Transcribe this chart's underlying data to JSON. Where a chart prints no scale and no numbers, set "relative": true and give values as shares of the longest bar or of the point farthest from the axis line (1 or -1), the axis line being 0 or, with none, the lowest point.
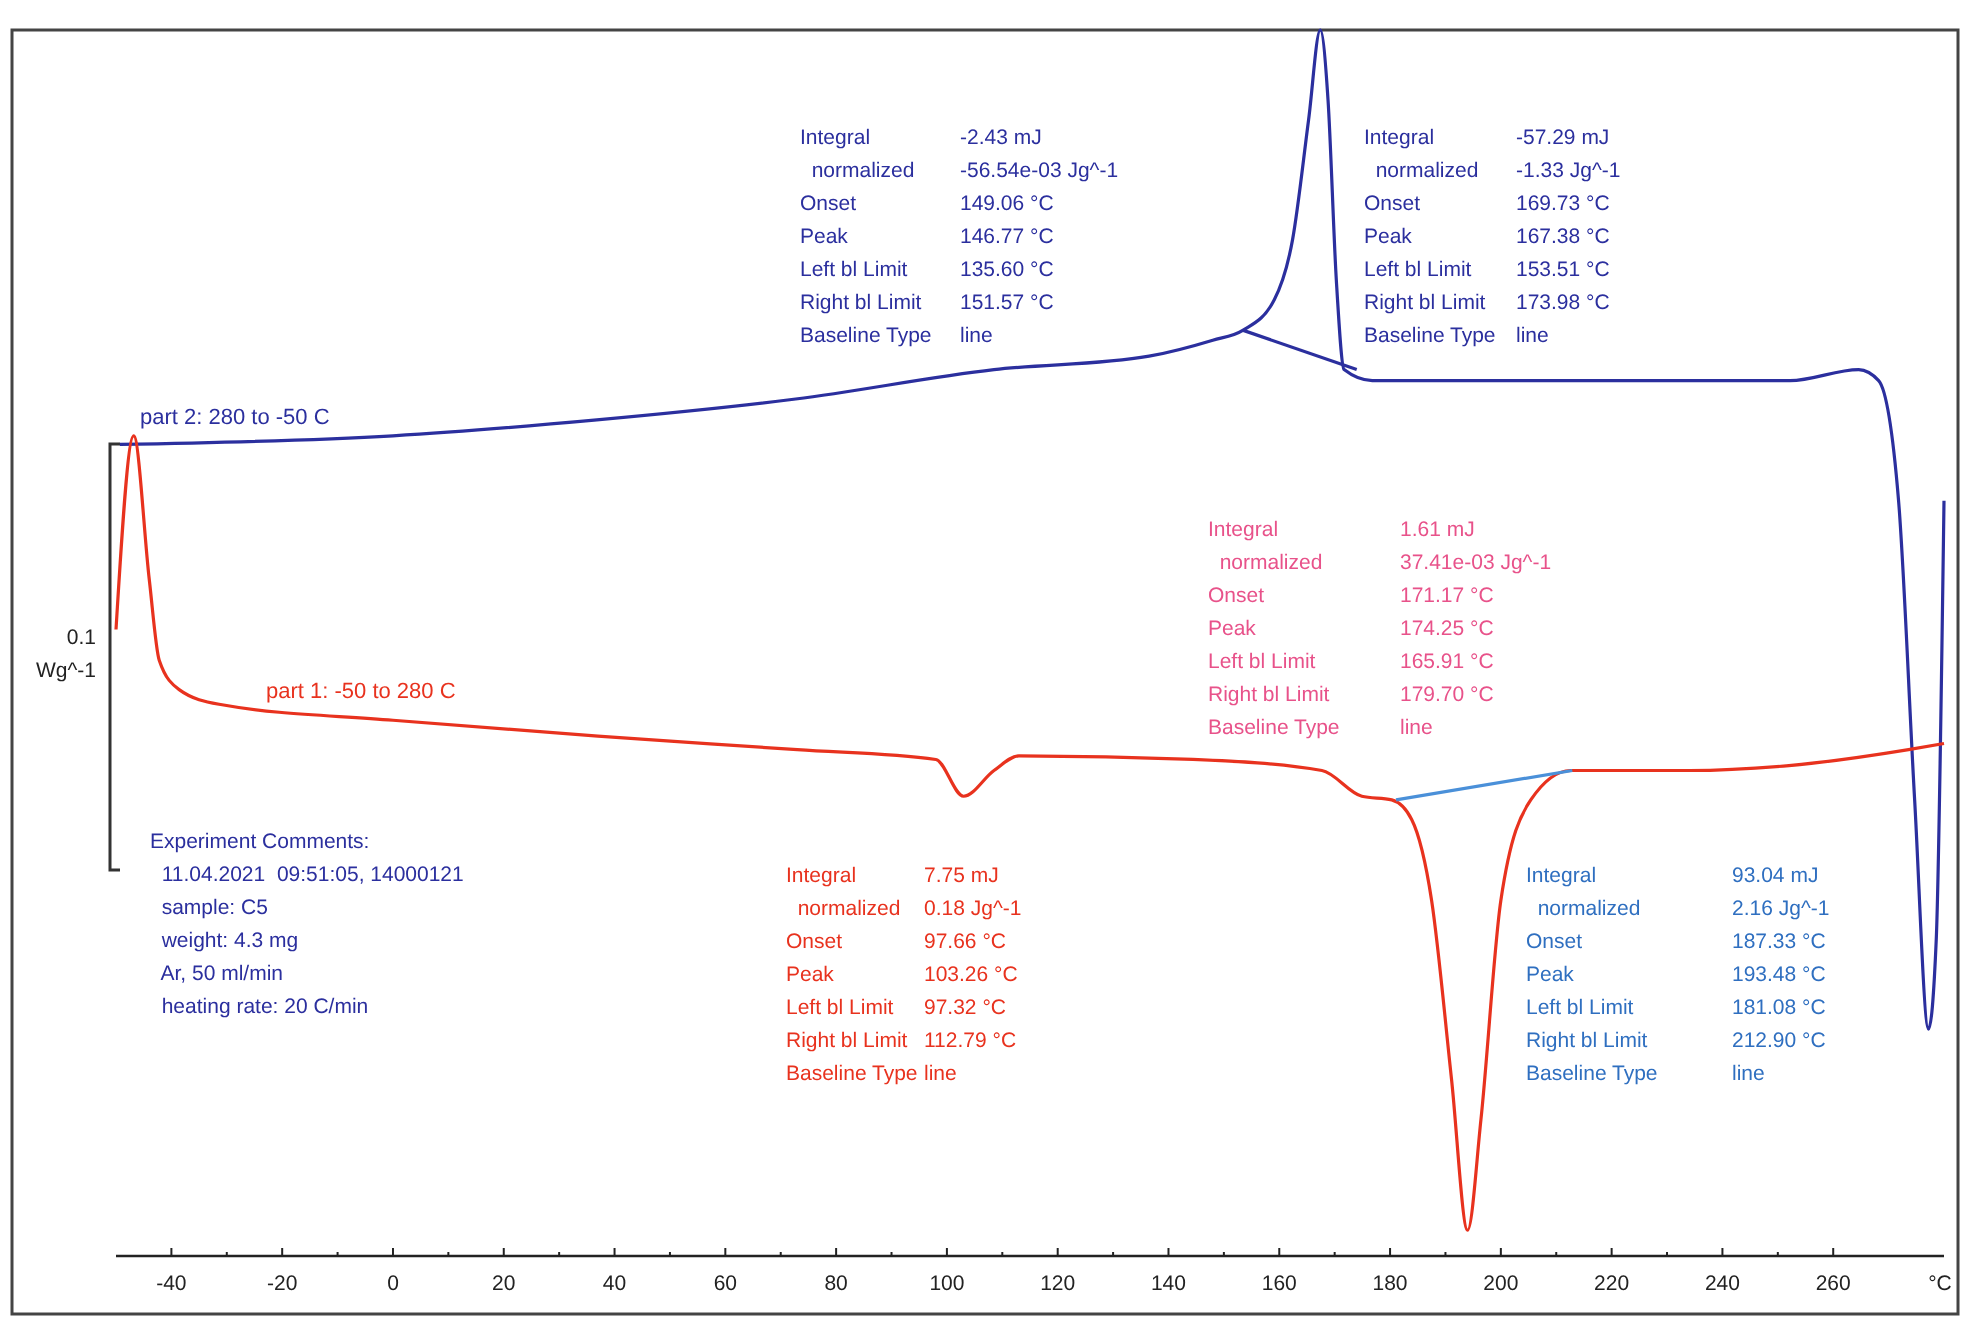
{
  "chart_data": {
    "type": "line",
    "relative": true,
    "xlabel": "°C",
    "xlim": [
      -50,
      280
    ],
    "xticks": [
      -40,
      -20,
      0,
      20,
      40,
      60,
      80,
      100,
      120,
      140,
      160,
      180,
      200,
      220,
      240,
      260
    ],
    "series": [
      {
        "name": "part 2: 280 to -50 C",
        "color": "#2b2f9e",
        "x": [
          -49.3,
          0,
          36.8,
          72.7,
          108.5,
          136.5,
          148,
          153.4,
          159.1,
          162.4,
          165.3,
          167.4,
          168.8,
          170.3,
          171.7,
          176.8,
          216.3,
          252.2,
          264.6,
          268.2,
          271.8,
          274.7,
          277.2,
          278.6,
          280
        ],
        "values": [
          0.662,
          0.669,
          0.682,
          0.699,
          0.723,
          0.734,
          0.747,
          0.755,
          0.78,
          0.829,
          0.927,
          1,
          0.943,
          0.796,
          0.723,
          0.714,
          0.714,
          0.714,
          0.723,
          0.714,
          0.616,
          0.372,
          0.185,
          0.258,
          0.616
        ]
      },
      {
        "name": "part 1: -50 to 280 C",
        "color": "#e8321e",
        "x": [
          -50,
          -46.8,
          -44,
          -42.2,
          -38.6,
          -31.4,
          0,
          37,
          73,
          98,
          103,
          108.5,
          113,
          144.4,
          167.7,
          174.9,
          180.3,
          183.9,
          187.5,
          191.1,
          194,
          196.4,
          200,
          205.4,
          212.6,
          234.1,
          252,
          273.6,
          280
        ],
        "values": [
          0.511,
          0.669,
          0.552,
          0.486,
          0.462,
          0.45,
          0.437,
          0.424,
          0.413,
          0.405,
          0.375,
          0.396,
          0.408,
          0.405,
          0.396,
          0.375,
          0.372,
          0.356,
          0.29,
          0.144,
          0.021,
          0.111,
          0.29,
          0.372,
          0.396,
          0.396,
          0.4,
          0.413,
          0.418
        ]
      },
      {
        "color": "#4a90d9",
        "x": [
          181.08,
          212.9
        ],
        "values": [
          0.372,
          0.396
        ]
      },
      {
        "color": "#2b2f9e",
        "x": [
          153.51,
          173.98
        ],
        "values": [
          0.755,
          0.723
        ]
      }
    ],
    "annotations": [
      "Integral\n  normalized\nOnset\nPeak\nLeft bl Limit\nRight bl Limit\nBaseline Type",
      "-2.43 mJ\n-56.54e-03 Jg^-1\n149.06 °C\n146.77 °C\n135.60 °C\n151.57 °C\nline",
      "Integral\n  normalized\nOnset\nPeak\nLeft bl Limit\nRight bl Limit\nBaseline Type",
      "-57.29 mJ\n-1.33 Jg^-1\n169.73 °C\n167.38 °C\n153.51 °C\n173.98 °C\nline",
      "Integral\n  normalized\nOnset\nPeak\nLeft bl Limit\nRight bl Limit\nBaseline Type",
      "1.61 mJ\n37.41e-03 Jg^-1\n171.17 °C\n174.25 °C\n165.91 °C\n179.70 °C\nline",
      "Integral\n  normalized\nOnset\nPeak\nLeft bl Limit\nRight bl Limit\nBaseline Type",
      "7.75 mJ\n0.18 Jg^-1\n97.66 °C\n103.26 °C\n97.32 °C\n112.79 °C\nline",
      "Integral\n  normalized\nOnset\nPeak\nLeft bl Limit\nRight bl Limit\nBaseline Type",
      "93.04 mJ\n2.16 Jg^-1\n187.33 °C\n193.48 °C\n181.08 °C\n212.90 °C\nline",
      "Experiment Comments:\n  11.04.2021  09:51:05, 14000121\n  sample: C5\n  weight: 4.3 mg\n  Ar, 50 ml/min\n  heating rate: 20 C/min",
      "0.1\nWg^-1"
    ]
  }
}
